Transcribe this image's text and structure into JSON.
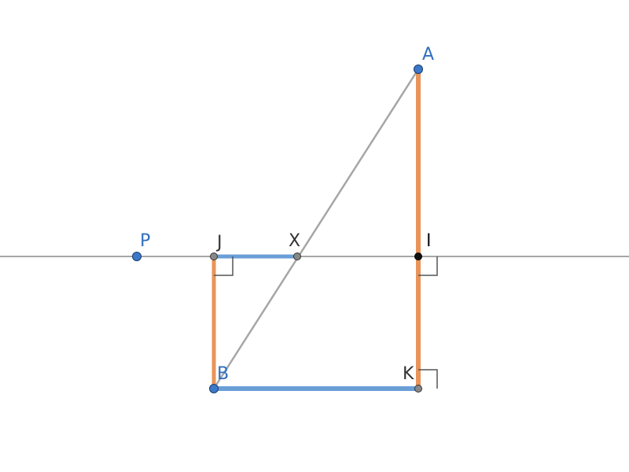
{
  "colors": {
    "background": "#ffffff",
    "line_gray": "#a6a6a6",
    "segment_orange": "#e8945a",
    "segment_blue": "#6a9ed6",
    "free_point_blue": "#3d78c8",
    "label_blue": "#2f6fc0",
    "label_dark": "#333333",
    "point_gray": "#888888",
    "point_black": "#111111",
    "right_angle_mark": "#555555"
  },
  "points": {
    "A": {
      "label": "A",
      "kind": "free"
    },
    "B": {
      "label": "B",
      "kind": "free"
    },
    "P": {
      "label": "P",
      "kind": "free"
    },
    "X": {
      "label": "X",
      "kind": "intersection"
    },
    "I": {
      "label": "I",
      "kind": "foot"
    },
    "J": {
      "label": "J",
      "kind": "foot"
    },
    "K": {
      "label": "K",
      "kind": "foot"
    }
  },
  "right_angles": [
    "J",
    "I",
    "K"
  ]
}
